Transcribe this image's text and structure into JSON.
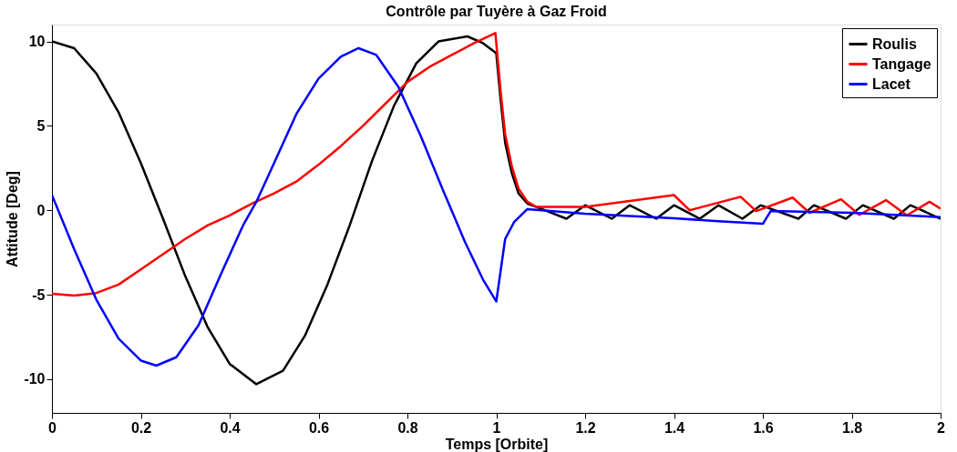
{
  "chart_data": {
    "type": "line",
    "title": "Contrôle par Tuyère à Gaz Froid",
    "xlabel": "Temps  [Orbite]",
    "ylabel": "Attitude   [Deg]",
    "xlim": [
      0,
      2
    ],
    "ylim": [
      -12,
      11
    ],
    "xticks": [
      0,
      0.2,
      0.4,
      0.6,
      0.8,
      1,
      1.2,
      1.4,
      1.6,
      1.8,
      2
    ],
    "yticks": [
      -10,
      -5,
      0,
      5,
      10
    ],
    "grid": false,
    "legend": "top right",
    "marker": "none",
    "line_style": "solid",
    "series": [
      {
        "name": "Roulis",
        "color": "#000000",
        "x": [
          0,
          0.05,
          0.1,
          0.15,
          0.2,
          0.25,
          0.3,
          0.35,
          0.4,
          0.46,
          0.52,
          0.57,
          0.62,
          0.67,
          0.72,
          0.77,
          0.82,
          0.87,
          0.935,
          0.97,
          1.0,
          1.01,
          1.02,
          1.035,
          1.05,
          1.07,
          1.1,
          1.158,
          1.2,
          1.26,
          1.3,
          1.36,
          1.4,
          1.458,
          1.5,
          1.554,
          1.595,
          1.68,
          1.715,
          1.787,
          1.825,
          1.895,
          1.932,
          2.0
        ],
        "values": [
          10,
          9.6,
          8.1,
          5.8,
          2.8,
          -0.5,
          -3.9,
          -6.9,
          -9.1,
          -10.3,
          -9.5,
          -7.4,
          -4.4,
          -0.9,
          2.9,
          6.2,
          8.7,
          10.0,
          10.3,
          9.9,
          9.3,
          6.5,
          4.0,
          2.2,
          1.0,
          0.4,
          0.1,
          -0.5,
          0.3,
          -0.5,
          0.3,
          -0.5,
          0.3,
          -0.5,
          0.3,
          -0.5,
          0.3,
          -0.5,
          0.3,
          -0.5,
          0.3,
          -0.5,
          0.3,
          -0.5
        ]
      },
      {
        "name": "Tangage",
        "color": "#ff0000",
        "x": [
          0,
          0.05,
          0.1,
          0.15,
          0.2,
          0.25,
          0.3,
          0.35,
          0.4,
          0.45,
          0.5,
          0.55,
          0.6,
          0.65,
          0.7,
          0.75,
          0.8,
          0.85,
          0.9,
          0.95,
          0.998,
          1.01,
          1.02,
          1.035,
          1.05,
          1.07,
          1.09,
          1.2,
          1.4,
          1.435,
          1.55,
          1.585,
          1.667,
          1.705,
          1.776,
          1.817,
          1.877,
          1.924,
          1.975,
          2.0
        ],
        "values": [
          -4.95,
          -5.05,
          -4.9,
          -4.4,
          -3.5,
          -2.6,
          -1.7,
          -0.9,
          -0.3,
          0.4,
          1.0,
          1.7,
          2.7,
          3.8,
          5.0,
          6.3,
          7.6,
          8.5,
          9.2,
          9.9,
          10.5,
          7.0,
          4.5,
          2.6,
          1.3,
          0.5,
          0.2,
          0.2,
          0.9,
          0.0,
          0.8,
          -0.05,
          0.75,
          -0.15,
          0.65,
          -0.27,
          0.6,
          -0.3,
          0.5,
          0.1
        ]
      },
      {
        "name": "Lacet",
        "color": "#0000ff",
        "x": [
          0,
          0.05,
          0.1,
          0.15,
          0.2,
          0.235,
          0.28,
          0.33,
          0.38,
          0.43,
          0.46,
          0.5,
          0.55,
          0.6,
          0.65,
          0.69,
          0.73,
          0.78,
          0.83,
          0.88,
          0.93,
          0.97,
          1.0,
          1.02,
          1.04,
          1.07,
          1.2,
          1.4,
          1.5,
          1.6,
          1.618,
          1.8,
          2.0
        ],
        "values": [
          0.9,
          -2.3,
          -5.3,
          -7.6,
          -8.9,
          -9.2,
          -8.7,
          -6.8,
          -3.8,
          -0.9,
          0.5,
          2.8,
          5.7,
          7.8,
          9.1,
          9.6,
          9.2,
          7.3,
          4.4,
          1.2,
          -1.9,
          -4.1,
          -5.4,
          -1.7,
          -0.7,
          0.07,
          -0.2,
          -0.47,
          -0.65,
          -0.8,
          -0.04,
          -0.15,
          -0.4
        ]
      }
    ]
  }
}
